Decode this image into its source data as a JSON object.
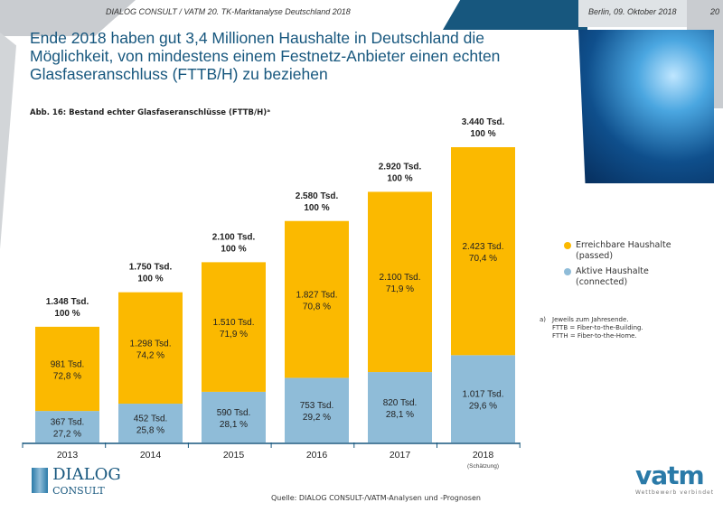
{
  "header": {
    "left_text": "DIALOG CONSULT / VATM 20. TK-Marktanalyse Deutschland 2018",
    "date": "Berlin, 09. Oktober 2018",
    "page_partial": "20"
  },
  "title": "Ende 2018 haben gut 3,4 Millionen Haushalte in Deutschland die Möglichkeit, von mindestens einem Festnetz-Anbieter einen echten Glasfaseranschluss (FTTB/H) zu beziehen",
  "chart_data": {
    "type": "bar",
    "stacked": true,
    "title": "Abb. 16: Bestand echter Glasfaseranschlüsse (FTTB/H)ᵃ",
    "categories": [
      "2013",
      "2014",
      "2015",
      "2016",
      "2017",
      "2018"
    ],
    "category_notes": [
      "",
      "",
      "",
      "",
      "",
      "(Schätzung)"
    ],
    "totals": [
      "1.348 Tsd.",
      "1.750 Tsd.",
      "2.100 Tsd.",
      "2.580 Tsd.",
      "2.920 Tsd.",
      "3.440 Tsd."
    ],
    "total_pct": "100 %",
    "total_values": [
      1348,
      1750,
      2100,
      2580,
      2920,
      3440
    ],
    "series": [
      {
        "name": "Aktive Haushalte (connected)",
        "color": "#8fbcd8",
        "values": [
          367,
          452,
          590,
          753,
          820,
          1017
        ],
        "labels": [
          "367 Tsd.",
          "452 Tsd.",
          "590 Tsd.",
          "753 Tsd.",
          "820 Tsd.",
          "1.017 Tsd."
        ],
        "pcts": [
          "27,2 %",
          "25,8 %",
          "28,1 %",
          "29,2 %",
          "28,1 %",
          "29,6 %"
        ]
      },
      {
        "name": "Erreichbare Haushalte (passed)",
        "color": "#fbb900",
        "values": [
          981,
          1298,
          1510,
          1827,
          2100,
          2423
        ],
        "labels": [
          "981 Tsd.",
          "1.298 Tsd.",
          "1.510 Tsd.",
          "1.827 Tsd.",
          "2.100 Tsd.",
          "2.423 Tsd."
        ],
        "pcts": [
          "72,8 %",
          "74,2 %",
          "71,9 %",
          "70,8 %",
          "71,9 %",
          "70,4 %"
        ]
      }
    ],
    "legend": {
      "position": "right",
      "items": [
        {
          "line1": "Erreichbare Haushalte",
          "line2": "(passed)",
          "color": "#fbb900"
        },
        {
          "line1": "Aktive Haushalte",
          "line2": "(connected)",
          "color": "#8fbcd8"
        }
      ]
    },
    "ylim": [
      0,
      3440
    ],
    "grid": false
  },
  "note": {
    "marker": "a)",
    "lines": [
      "Jeweils zum Jahresende.",
      "FTTB = Fiber-to-the-Building.",
      "FTTH = Fiber-to-the-Home."
    ]
  },
  "source": "Quelle: DIALOG CONSULT-/VATM-Analysen und -Prognosen",
  "logos": {
    "dialog": "DIALOG CONSULT GmbH",
    "vatm": "vatm",
    "vatm_tagline": "Wettbewerb verbindet"
  }
}
